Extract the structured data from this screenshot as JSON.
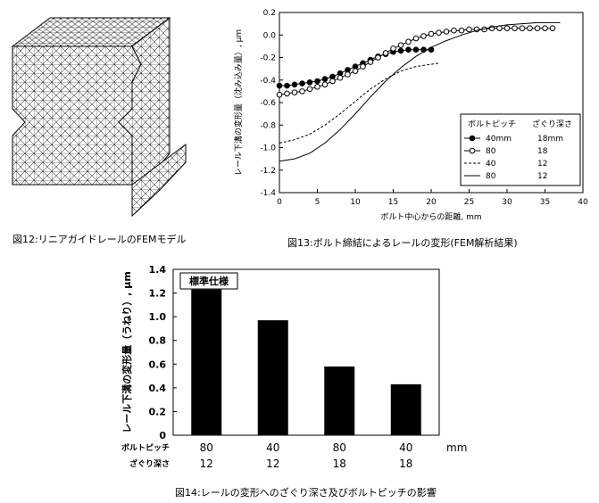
{
  "captions": {
    "fig12": "図12:リニアガイドレールのFEMモデル",
    "fig13": "図13:ボルト締結によるレールの変形(FEM解析結果)",
    "fig14": "図14:レールの変形へのざぐり深さ及びボルトピッチの影響"
  },
  "chart_data": [
    {
      "type": "line",
      "title": "",
      "xlabel": "ボルト中心からの距離, mm",
      "ylabel": "レール下溝の変形量（沈み込み量）, μm",
      "xlim": [
        0,
        40
      ],
      "ylim": [
        -1.4,
        0.2
      ],
      "xticks": [
        0,
        5,
        10,
        15,
        20,
        25,
        30,
        35,
        40
      ],
      "yticks": [
        0.2,
        0.0,
        -0.2,
        -0.4,
        -0.6,
        -0.8,
        -1.0,
        -1.2,
        -1.4
      ],
      "legend": {
        "position": "bottom-right",
        "headers": [
          "ボルトピッチ",
          "ざぐり深さ"
        ],
        "rows": [
          {
            "pitch": "40mm",
            "depth": "18mm"
          },
          {
            "pitch": "80",
            "depth": "18"
          },
          {
            "pitch": "40",
            "depth": "12"
          },
          {
            "pitch": "80",
            "depth": "12"
          }
        ]
      },
      "series": [
        {
          "style": "filled-circle",
          "x": [
            0,
            1,
            2,
            3,
            4,
            5,
            6,
            7,
            8,
            9,
            10,
            11,
            12,
            13,
            14,
            15,
            16,
            17,
            18,
            19,
            20
          ],
          "y": [
            -0.45,
            -0.45,
            -0.44,
            -0.43,
            -0.42,
            -0.41,
            -0.39,
            -0.37,
            -0.34,
            -0.31,
            -0.28,
            -0.25,
            -0.22,
            -0.19,
            -0.17,
            -0.15,
            -0.14,
            -0.13,
            -0.13,
            -0.13,
            -0.13
          ]
        },
        {
          "style": "open-circle",
          "x": [
            0,
            1,
            2,
            3,
            4,
            5,
            6,
            7,
            8,
            9,
            10,
            11,
            12,
            13,
            14,
            15,
            16,
            17,
            18,
            19,
            20,
            21,
            22,
            23,
            24,
            25,
            26,
            27,
            28,
            29,
            30,
            31,
            32,
            33,
            34,
            35,
            36
          ],
          "y": [
            -0.53,
            -0.52,
            -0.51,
            -0.5,
            -0.48,
            -0.46,
            -0.44,
            -0.41,
            -0.38,
            -0.35,
            -0.32,
            -0.28,
            -0.24,
            -0.2,
            -0.16,
            -0.12,
            -0.09,
            -0.06,
            -0.03,
            -0.01,
            0.01,
            0.02,
            0.03,
            0.04,
            0.04,
            0.05,
            0.05,
            0.05,
            0.06,
            0.06,
            0.06,
            0.06,
            0.06,
            0.06,
            0.06,
            0.06,
            0.06
          ]
        },
        {
          "style": "dashed",
          "x": [
            0,
            2,
            4,
            6,
            8,
            10,
            12,
            14,
            16,
            18,
            20,
            21
          ],
          "y": [
            -0.96,
            -0.93,
            -0.88,
            -0.8,
            -0.7,
            -0.59,
            -0.48,
            -0.39,
            -0.32,
            -0.28,
            -0.26,
            -0.25
          ]
        },
        {
          "style": "solid",
          "x": [
            0,
            2,
            4,
            6,
            8,
            10,
            12,
            14,
            16,
            18,
            20,
            22,
            24,
            26,
            28,
            30,
            32,
            34,
            36,
            37
          ],
          "y": [
            -1.12,
            -1.1,
            -1.05,
            -0.96,
            -0.84,
            -0.7,
            -0.55,
            -0.41,
            -0.29,
            -0.19,
            -0.11,
            -0.05,
            0.0,
            0.04,
            0.07,
            0.09,
            0.1,
            0.11,
            0.11,
            0.11
          ]
        }
      ]
    },
    {
      "type": "bar",
      "title": "",
      "annotation": "標準仕様",
      "ylabel": "レール下溝の変形量（うねり）, μm",
      "ylim": [
        0,
        1.4
      ],
      "yticks": [
        0,
        0.2,
        0.4,
        0.6,
        0.8,
        1.0,
        1.2,
        1.4
      ],
      "yticklabels": [
        "0",
        "0.2",
        "0.4",
        "0.6",
        "0.8",
        "1.0",
        "1.2",
        "1.4"
      ],
      "row_labels": [
        "ボルトピッチ",
        "ざぐり深さ"
      ],
      "unit": "mm",
      "categories": [
        {
          "pitch": "80",
          "depth": "12"
        },
        {
          "pitch": "40",
          "depth": "12"
        },
        {
          "pitch": "80",
          "depth": "18"
        },
        {
          "pitch": "40",
          "depth": "18"
        }
      ],
      "values": [
        1.23,
        0.97,
        0.58,
        0.43
      ]
    }
  ]
}
